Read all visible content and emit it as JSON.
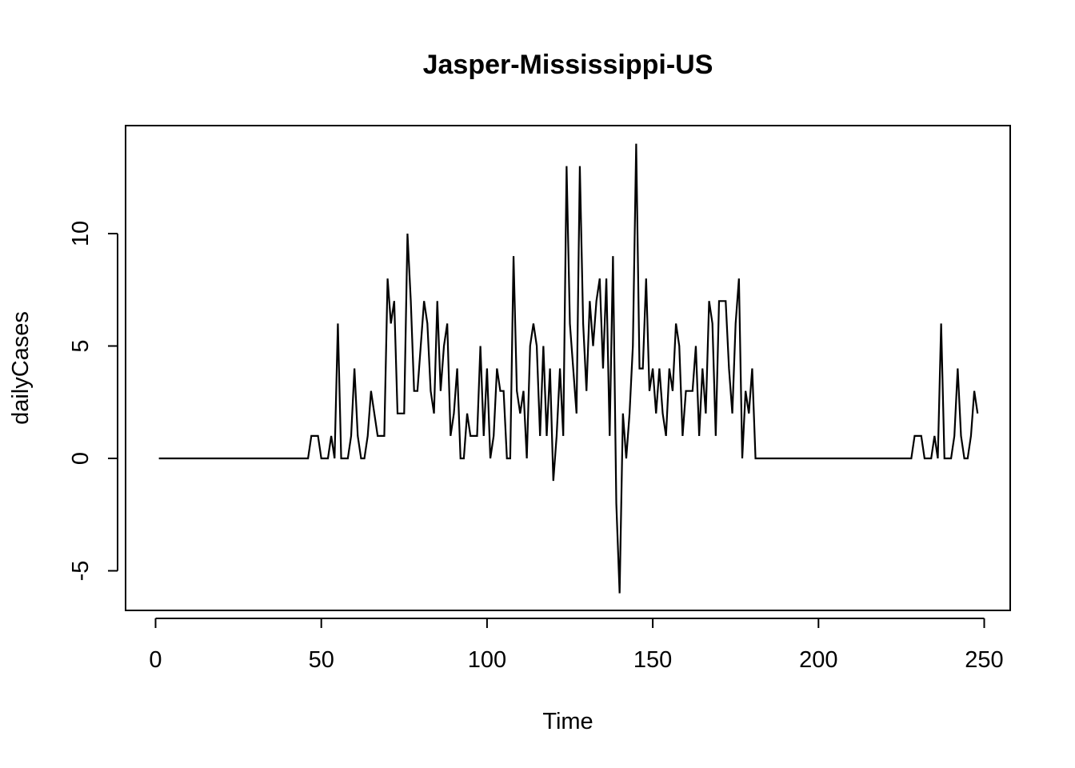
{
  "chart_data": {
    "type": "line",
    "title": "Jasper-Mississippi-US",
    "xlabel": "Time",
    "ylabel": "dailyCases",
    "xlim": [
      1,
      248
    ],
    "ylim": [
      -6,
      14
    ],
    "x_ticks": [
      "0",
      "50",
      "100",
      "150",
      "200",
      "250"
    ],
    "y_ticks": [
      "-5",
      "0",
      "5",
      "10"
    ],
    "x_tick_values": [
      0,
      50,
      100,
      150,
      200,
      250
    ],
    "y_tick_values": [
      -5,
      0,
      5,
      10
    ],
    "grid": false,
    "x_start": 1,
    "series": [
      {
        "color": "#000000",
        "values": [
          0,
          0,
          0,
          0,
          0,
          0,
          0,
          0,
          0,
          0,
          0,
          0,
          0,
          0,
          0,
          0,
          0,
          0,
          0,
          0,
          0,
          0,
          0,
          0,
          0,
          0,
          0,
          0,
          0,
          0,
          0,
          0,
          0,
          0,
          0,
          0,
          0,
          0,
          0,
          0,
          0,
          0,
          0,
          0,
          0,
          0,
          1,
          1,
          1,
          0,
          0,
          0,
          1,
          0,
          6,
          0,
          0,
          0,
          1,
          4,
          1,
          0,
          0,
          1,
          3,
          2,
          1,
          1,
          1,
          8,
          6,
          7,
          2,
          2,
          2,
          10,
          7,
          3,
          3,
          5,
          7,
          6,
          3,
          2,
          7,
          3,
          5,
          6,
          1,
          2,
          4,
          0,
          0,
          2,
          1,
          1,
          1,
          5,
          1,
          4,
          0,
          1,
          4,
          3,
          3,
          0,
          0,
          9,
          3,
          2,
          3,
          0,
          5,
          6,
          5,
          1,
          5,
          1,
          4,
          -1,
          1,
          4,
          1,
          13,
          6,
          4,
          2,
          13,
          6,
          3,
          7,
          5,
          7,
          8,
          4,
          8,
          1,
          9,
          -2,
          -6,
          2,
          0,
          2,
          5,
          14,
          4,
          4,
          8,
          3,
          4,
          2,
          4,
          2,
          1,
          4,
          3,
          6,
          5,
          1,
          3,
          3,
          3,
          5,
          1,
          4,
          2,
          7,
          6,
          1,
          7,
          7,
          7,
          4,
          2,
          6,
          8,
          0,
          3,
          2,
          4,
          0,
          0,
          0,
          0,
          0,
          0,
          0,
          0,
          0,
          0,
          0,
          0,
          0,
          0,
          0,
          0,
          0,
          0,
          0,
          0,
          0,
          0,
          0,
          0,
          0,
          0,
          0,
          0,
          0,
          0,
          0,
          0,
          0,
          0,
          0,
          0,
          0,
          0,
          0,
          0,
          0,
          0,
          0,
          0,
          0,
          0,
          0,
          0,
          1,
          1,
          1,
          0,
          0,
          0,
          1,
          0,
          6,
          0,
          0,
          0,
          1,
          4,
          1,
          0,
          0,
          1,
          3,
          2
        ]
      }
    ]
  }
}
